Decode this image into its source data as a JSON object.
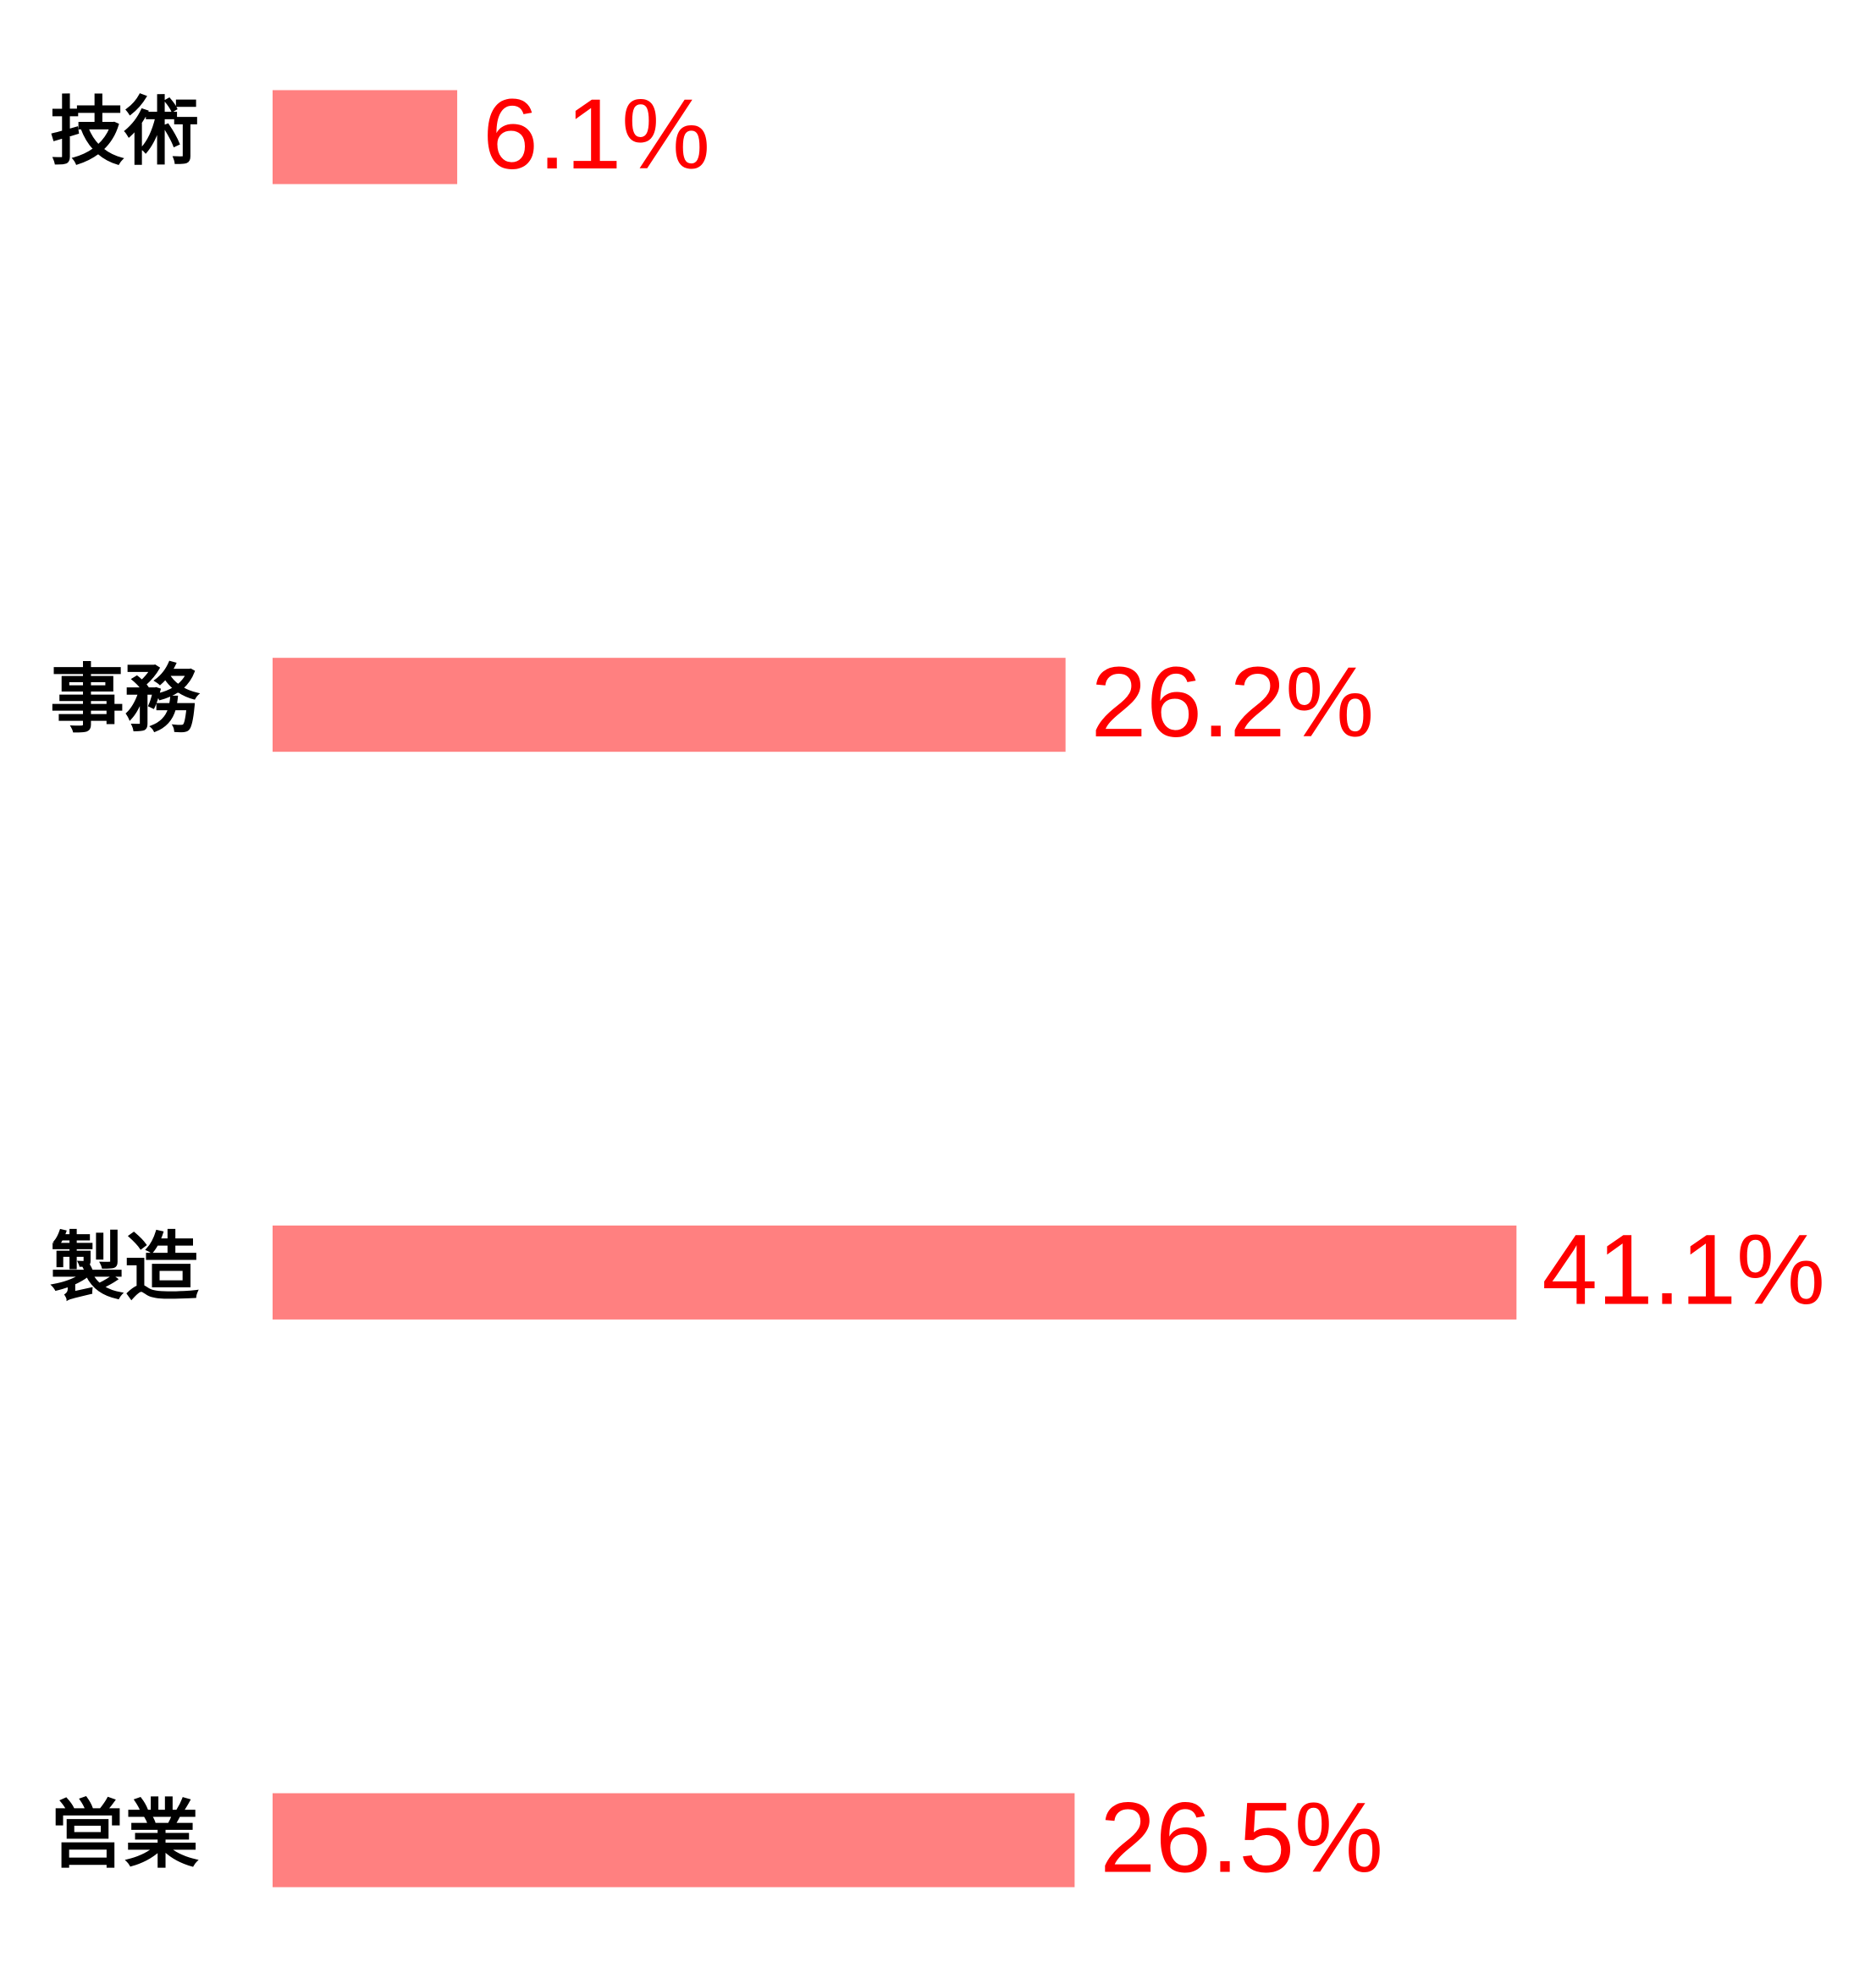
{
  "chart_data": {
    "type": "bar",
    "orientation": "horizontal",
    "categories": [
      "技術",
      "事務",
      "製造",
      "営業"
    ],
    "values": [
      6.1,
      26.2,
      41.1,
      26.5
    ],
    "value_labels": [
      "6.1%",
      "26.2%",
      "41.1%",
      "26.5%"
    ],
    "color": "#ff8080",
    "label_color": "#ff0000"
  }
}
